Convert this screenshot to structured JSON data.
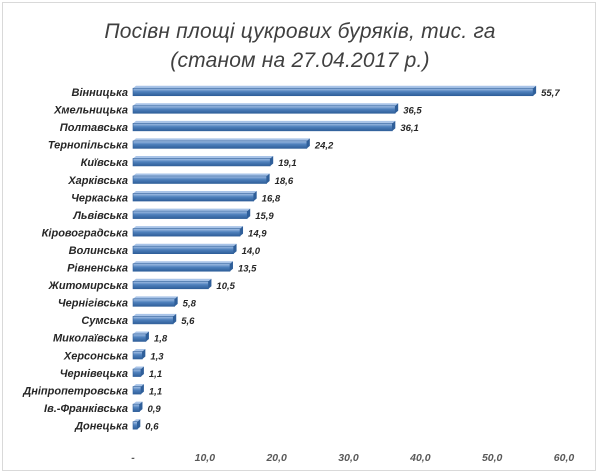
{
  "chart_data": {
    "type": "bar",
    "orientation": "horizontal",
    "title_line1": "Посівн площі цукрових буряків, тис. га",
    "title_line2": "(станом на 27.04.2017 р.)",
    "categories": [
      "Вінницька",
      "Хмельницька",
      "Полтавська",
      "Тернопільська",
      "Київська",
      "Харківська",
      "Черкаська",
      "Львівська",
      "Кіровоградська",
      "Волинська",
      "Рівненська",
      "Житомирська",
      "Чернігівська",
      "Сумська",
      "Миколаївська",
      "Херсонська",
      "Чернівецька",
      "Дніпропетровська",
      "Ів.-Франківська",
      "Донецька"
    ],
    "values": [
      55.7,
      36.5,
      36.1,
      24.2,
      19.1,
      18.6,
      16.8,
      15.9,
      14.9,
      14.0,
      13.5,
      10.5,
      5.8,
      5.6,
      1.8,
      1.3,
      1.1,
      1.1,
      0.9,
      0.6
    ],
    "value_labels": [
      "55,7",
      "36,5",
      "36,1",
      "24,2",
      "19,1",
      "18,6",
      "16,8",
      "15,9",
      "14,9",
      "14,0",
      "13,5",
      "10,5",
      "5,8",
      "5,6",
      "1,8",
      "1,3",
      "1,1",
      "1,1",
      "0,9",
      "0,6"
    ],
    "x_ticks": [
      0,
      10,
      20,
      30,
      40,
      50,
      60
    ],
    "x_tick_labels": [
      "-",
      "10,0",
      "20,0",
      "30,0",
      "40,0",
      "50,0",
      "60,0"
    ],
    "xlim": [
      0,
      60
    ],
    "grid": false,
    "legend": "none",
    "bar_color": "#4f81bd",
    "bar_top_color": "#a9c4e8",
    "bar_edge_color": "#2f5f9a"
  }
}
